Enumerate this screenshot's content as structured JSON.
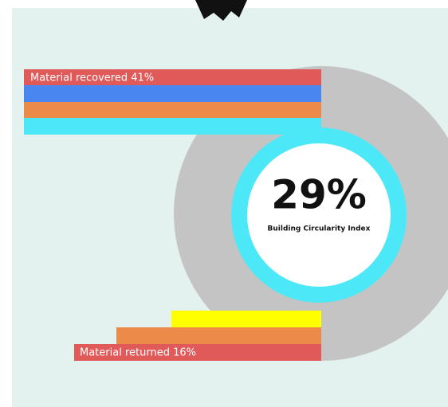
{
  "infographic": {
    "top_label": "Material recovered 41%",
    "center_value": "29%",
    "center_caption": "Building Circularity Index",
    "bottom_label": "Material returned 16%"
  }
}
